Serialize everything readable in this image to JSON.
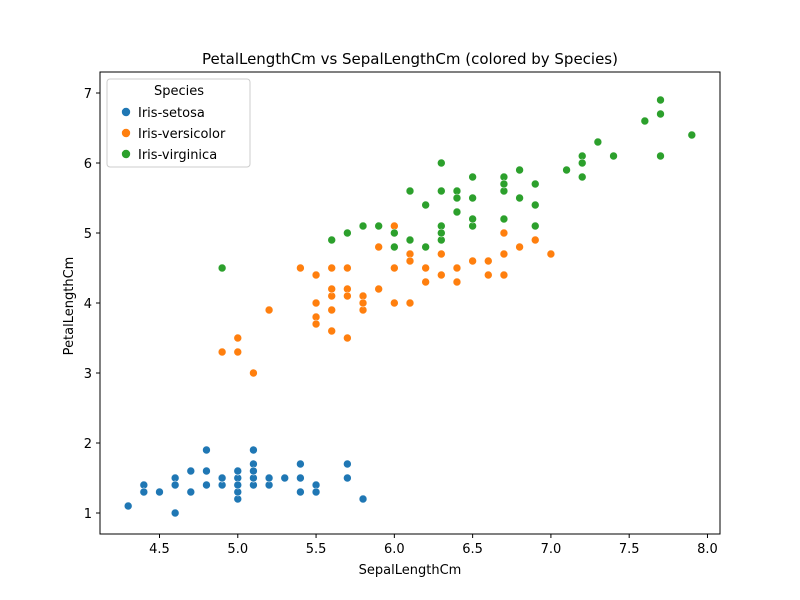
{
  "chart_data": {
    "type": "scatter",
    "title": "PetalLengthCm vs SepalLengthCm (colored by Species)",
    "xlabel": "SepalLengthCm",
    "ylabel": "PetalLengthCm",
    "xlim": [
      4.12,
      8.08
    ],
    "ylim": [
      0.7,
      7.3
    ],
    "xticks": [
      "4.5",
      "5.0",
      "5.5",
      "6.0",
      "6.5",
      "7.0",
      "7.5",
      "8.0"
    ],
    "yticks": [
      "1",
      "2",
      "3",
      "4",
      "5",
      "6",
      "7"
    ],
    "grid": false,
    "legend": {
      "title": "Species",
      "placement": "top-left"
    },
    "series": [
      {
        "name": "Iris-setosa",
        "color": "#1f77b4",
        "points": [
          [
            5.1,
            1.4
          ],
          [
            4.9,
            1.4
          ],
          [
            4.7,
            1.3
          ],
          [
            4.6,
            1.5
          ],
          [
            5.0,
            1.4
          ],
          [
            5.4,
            1.7
          ],
          [
            4.6,
            1.4
          ],
          [
            5.0,
            1.5
          ],
          [
            4.4,
            1.4
          ],
          [
            4.9,
            1.5
          ],
          [
            5.4,
            1.5
          ],
          [
            4.8,
            1.6
          ],
          [
            4.8,
            1.4
          ],
          [
            4.3,
            1.1
          ],
          [
            5.8,
            1.2
          ],
          [
            5.7,
            1.5
          ],
          [
            5.4,
            1.3
          ],
          [
            5.1,
            1.4
          ],
          [
            5.7,
            1.7
          ],
          [
            5.1,
            1.5
          ],
          [
            5.4,
            1.7
          ],
          [
            5.1,
            1.5
          ],
          [
            4.6,
            1.0
          ],
          [
            5.1,
            1.7
          ],
          [
            4.8,
            1.9
          ],
          [
            5.0,
            1.6
          ],
          [
            5.0,
            1.6
          ],
          [
            5.2,
            1.5
          ],
          [
            5.2,
            1.4
          ],
          [
            4.7,
            1.6
          ],
          [
            4.8,
            1.6
          ],
          [
            5.4,
            1.5
          ],
          [
            5.2,
            1.5
          ],
          [
            5.5,
            1.4
          ],
          [
            4.9,
            1.5
          ],
          [
            5.0,
            1.2
          ],
          [
            5.5,
            1.3
          ],
          [
            4.9,
            1.5
          ],
          [
            4.4,
            1.3
          ],
          [
            5.1,
            1.5
          ],
          [
            5.0,
            1.3
          ],
          [
            4.5,
            1.3
          ],
          [
            4.4,
            1.3
          ],
          [
            5.0,
            1.6
          ],
          [
            5.1,
            1.9
          ],
          [
            4.8,
            1.4
          ],
          [
            5.1,
            1.6
          ],
          [
            4.6,
            1.4
          ],
          [
            5.3,
            1.5
          ],
          [
            5.0,
            1.4
          ]
        ]
      },
      {
        "name": "Iris-versicolor",
        "color": "#ff7f0e",
        "points": [
          [
            7.0,
            4.7
          ],
          [
            6.4,
            4.5
          ],
          [
            6.9,
            4.9
          ],
          [
            5.5,
            4.0
          ],
          [
            6.5,
            4.6
          ],
          [
            5.7,
            4.5
          ],
          [
            6.3,
            4.7
          ],
          [
            4.9,
            3.3
          ],
          [
            6.6,
            4.6
          ],
          [
            5.2,
            3.9
          ],
          [
            5.0,
            3.5
          ],
          [
            5.9,
            4.2
          ],
          [
            6.0,
            4.0
          ],
          [
            6.1,
            4.7
          ],
          [
            5.6,
            3.6
          ],
          [
            6.7,
            4.4
          ],
          [
            5.6,
            4.5
          ],
          [
            5.8,
            4.1
          ],
          [
            6.2,
            4.5
          ],
          [
            5.6,
            3.9
          ],
          [
            5.9,
            4.8
          ],
          [
            6.1,
            4.0
          ],
          [
            6.3,
            4.9
          ],
          [
            6.1,
            4.7
          ],
          [
            6.4,
            4.3
          ],
          [
            6.6,
            4.4
          ],
          [
            6.8,
            4.8
          ],
          [
            6.7,
            5.0
          ],
          [
            6.0,
            4.5
          ],
          [
            5.7,
            3.5
          ],
          [
            5.5,
            3.8
          ],
          [
            5.5,
            3.7
          ],
          [
            5.8,
            3.9
          ],
          [
            6.0,
            5.1
          ],
          [
            5.4,
            4.5
          ],
          [
            6.0,
            4.5
          ],
          [
            6.7,
            4.7
          ],
          [
            6.3,
            4.4
          ],
          [
            5.6,
            4.1
          ],
          [
            5.5,
            4.0
          ],
          [
            5.5,
            4.4
          ],
          [
            6.1,
            4.6
          ],
          [
            5.8,
            4.0
          ],
          [
            5.0,
            3.3
          ],
          [
            5.6,
            4.2
          ],
          [
            5.7,
            4.2
          ],
          [
            5.7,
            4.2
          ],
          [
            6.2,
            4.3
          ],
          [
            5.1,
            3.0
          ],
          [
            5.7,
            4.1
          ]
        ]
      },
      {
        "name": "Iris-virginica",
        "color": "#2ca02c",
        "points": [
          [
            6.3,
            6.0
          ],
          [
            5.8,
            5.1
          ],
          [
            7.1,
            5.9
          ],
          [
            6.3,
            5.6
          ],
          [
            6.5,
            5.8
          ],
          [
            7.6,
            6.6
          ],
          [
            4.9,
            4.5
          ],
          [
            7.3,
            6.3
          ],
          [
            6.7,
            5.8
          ],
          [
            7.2,
            6.1
          ],
          [
            6.5,
            5.1
          ],
          [
            6.4,
            5.3
          ],
          [
            6.8,
            5.5
          ],
          [
            5.7,
            5.0
          ],
          [
            5.8,
            5.1
          ],
          [
            6.4,
            5.3
          ],
          [
            6.5,
            5.5
          ],
          [
            7.7,
            6.7
          ],
          [
            7.7,
            6.9
          ],
          [
            6.0,
            5.0
          ],
          [
            6.9,
            5.7
          ],
          [
            5.6,
            4.9
          ],
          [
            7.7,
            6.7
          ],
          [
            6.3,
            4.9
          ],
          [
            6.7,
            5.7
          ],
          [
            7.2,
            6.0
          ],
          [
            6.2,
            4.8
          ],
          [
            6.1,
            4.9
          ],
          [
            6.4,
            5.6
          ],
          [
            7.2,
            5.8
          ],
          [
            7.4,
            6.1
          ],
          [
            7.9,
            6.4
          ],
          [
            6.4,
            5.6
          ],
          [
            6.3,
            5.1
          ],
          [
            6.1,
            5.6
          ],
          [
            7.7,
            6.1
          ],
          [
            6.3,
            5.6
          ],
          [
            6.4,
            5.5
          ],
          [
            6.0,
            4.8
          ],
          [
            6.9,
            5.4
          ],
          [
            6.7,
            5.6
          ],
          [
            6.9,
            5.1
          ],
          [
            5.8,
            5.1
          ],
          [
            6.8,
            5.9
          ],
          [
            6.7,
            5.7
          ],
          [
            6.7,
            5.2
          ],
          [
            6.3,
            5.0
          ],
          [
            6.5,
            5.2
          ],
          [
            6.2,
            5.4
          ],
          [
            5.9,
            5.1
          ]
        ]
      }
    ]
  }
}
